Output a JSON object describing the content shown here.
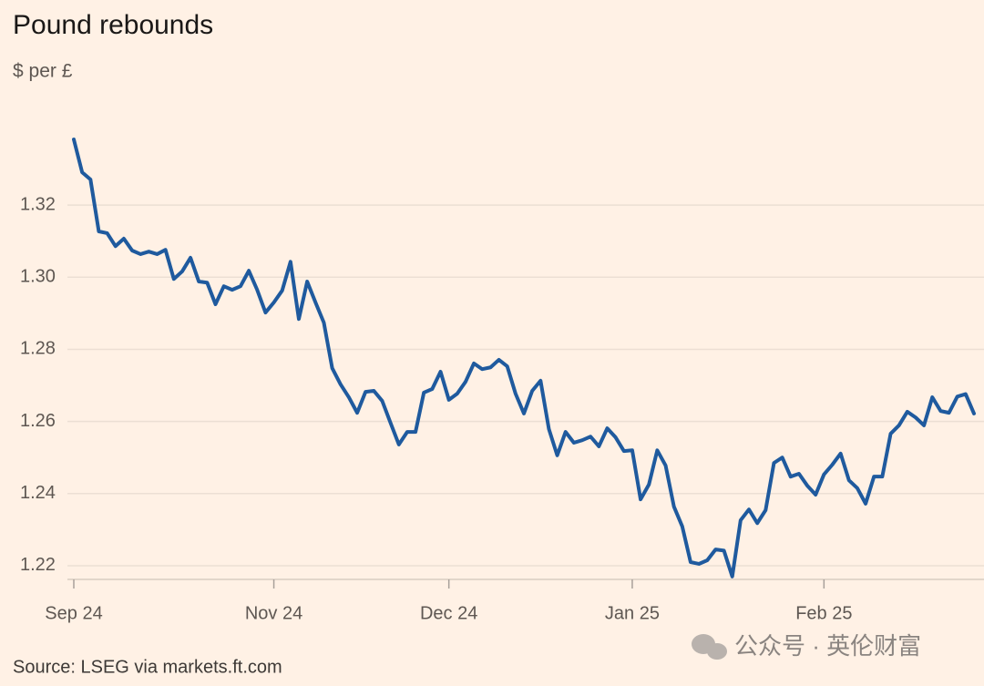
{
  "chart_data": {
    "type": "line",
    "title": "Pound rebounds",
    "subtitle": "$ per £",
    "source": "Source: LSEG via markets.ft.com",
    "watermark": "公众号 · 英伦财富",
    "categories": [
      "Sep 24",
      null,
      null,
      null,
      null,
      null,
      null,
      null,
      null,
      null,
      null,
      null,
      null,
      null,
      null,
      null,
      null,
      null,
      null,
      null,
      null,
      null,
      null,
      null,
      "Nov 24",
      null,
      null,
      null,
      null,
      null,
      null,
      null,
      null,
      null,
      null,
      null,
      null,
      null,
      null,
      null,
      null,
      null,
      null,
      null,
      null,
      "Dec 24",
      null,
      null,
      null,
      null,
      null,
      null,
      null,
      null,
      null,
      null,
      null,
      null,
      null,
      null,
      null,
      null,
      null,
      null,
      null,
      null,
      null,
      "Jan 25",
      null,
      null,
      null,
      null,
      null,
      null,
      null,
      null,
      null,
      null,
      null,
      null,
      null,
      null,
      null,
      null,
      null,
      null,
      null,
      null,
      null,
      null,
      "Feb 25",
      null,
      null,
      null,
      null,
      null,
      null,
      null,
      null,
      null,
      null,
      null,
      null,
      null,
      null,
      null,
      null,
      null,
      null
    ],
    "values": [
      1.3382,
      1.3291,
      1.3271,
      1.3127,
      1.3122,
      1.3086,
      1.3107,
      1.3074,
      1.3064,
      1.3071,
      1.3064,
      1.3076,
      1.2995,
      1.3016,
      1.3054,
      1.2988,
      1.2985,
      1.2925,
      1.2975,
      1.2965,
      1.2975,
      1.3018,
      1.2965,
      1.2902,
      1.293,
      1.2963,
      1.3043,
      1.2884,
      1.2988,
      1.293,
      1.2874,
      1.2748,
      1.2703,
      1.2667,
      1.2624,
      1.2682,
      1.2685,
      1.2657,
      1.2596,
      1.2536,
      1.2571,
      1.2571,
      1.268,
      1.269,
      1.2738,
      1.266,
      1.2677,
      1.271,
      1.2761,
      1.2745,
      1.275,
      1.2771,
      1.2753,
      1.2677,
      1.2622,
      1.2685,
      1.2713,
      1.2579,
      1.2506,
      1.2571,
      1.2541,
      1.2548,
      1.2558,
      1.2531,
      1.2581,
      1.2556,
      1.2518,
      1.252,
      1.2384,
      1.2425,
      1.252,
      1.2478,
      1.2364,
      1.2309,
      1.221,
      1.2205,
      1.2215,
      1.2245,
      1.2242,
      1.217,
      1.2326,
      1.2356,
      1.2318,
      1.2354,
      1.2485,
      1.25,
      1.2447,
      1.2455,
      1.2422,
      1.2397,
      1.2453,
      1.248,
      1.2511,
      1.2437,
      1.2415,
      1.2372,
      1.2447,
      1.2447,
      1.2566,
      1.2589,
      1.2627,
      1.2611,
      1.2589,
      1.2667,
      1.2629,
      1.2624,
      1.2669,
      1.2676,
      1.2622
    ],
    "color": "#1f5a9e",
    "ylim": [
      1.2162,
      1.3415
    ],
    "yticks": [
      1.22,
      1.24,
      1.26,
      1.28,
      {
        "value": 1.3,
        "label": "1.30"
      },
      1.32
    ],
    "grid": true
  }
}
